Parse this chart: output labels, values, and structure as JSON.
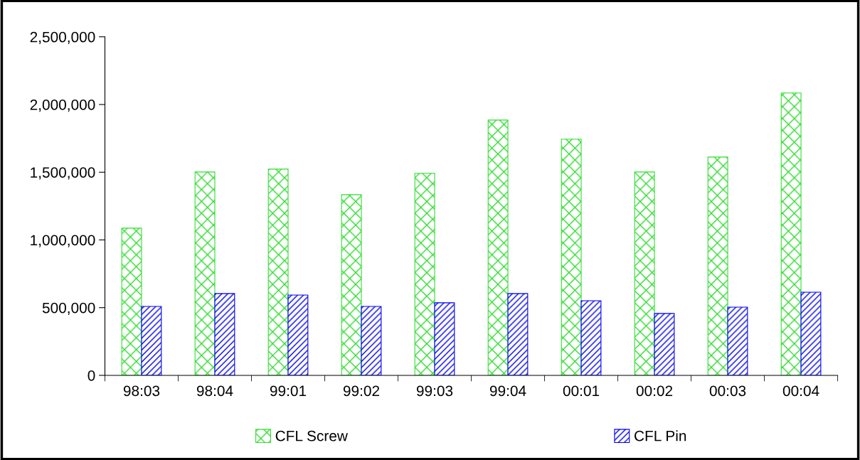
{
  "chart_data": {
    "type": "bar",
    "categories": [
      "98:03",
      "98:04",
      "99:01",
      "99:02",
      "99:03",
      "99:04",
      "00:01",
      "00:02",
      "00:03",
      "00:04"
    ],
    "series": [
      {
        "name": "CFL Screw",
        "color": "#33dd33",
        "values": [
          1087000,
          1502000,
          1523000,
          1334000,
          1492000,
          1885000,
          1744000,
          1502000,
          1612000,
          2085000
        ]
      },
      {
        "name": "CFL Pin",
        "color": "#0000ee",
        "values": [
          509000,
          604000,
          593000,
          509000,
          536000,
          604000,
          551000,
          457000,
          504000,
          614000
        ]
      }
    ],
    "ylim": [
      0,
      2500000
    ],
    "yticks": [
      {
        "value": 0,
        "label": "0"
      },
      {
        "value": 500000,
        "label": "500,000"
      },
      {
        "value": 1000000,
        "label": "1,000,000"
      },
      {
        "value": 1500000,
        "label": "1,500,000"
      },
      {
        "value": 2000000,
        "label": "2,000,000"
      },
      {
        "value": 2500000,
        "label": "2,500,000"
      }
    ],
    "grid": false,
    "legend": "bottom"
  }
}
